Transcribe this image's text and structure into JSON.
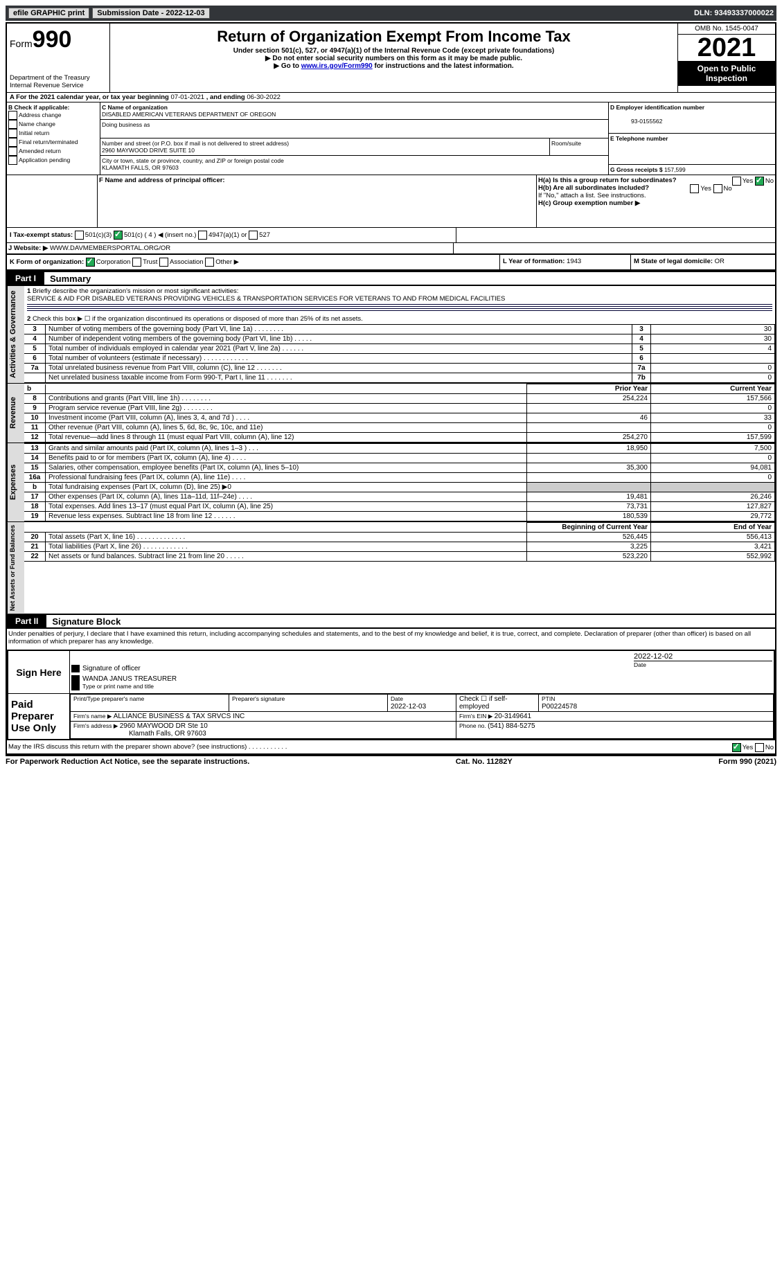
{
  "topbar": {
    "efile_btn": "efile GRAPHIC print",
    "submission_label": "Submission Date - ",
    "submission_date": "2022-12-03",
    "dln_label": "DLN: ",
    "dln": "93493337000022"
  },
  "header": {
    "form_prefix": "Form",
    "form_number": "990",
    "dept": "Department of the Treasury\nInternal Revenue Service",
    "title": "Return of Organization Exempt From Income Tax",
    "subtitle": "Under section 501(c), 527, or 4947(a)(1) of the Internal Revenue Code (except private foundations)",
    "note1": "▶ Do not enter social security numbers on this form as it may be made public.",
    "note2_pre": "▶ Go to ",
    "note2_link": "www.irs.gov/Form990",
    "note2_post": " for instructions and the latest information.",
    "omb": "OMB No. 1545-0047",
    "year": "2021",
    "open": "Open to Public Inspection"
  },
  "periodA": {
    "label": "A For the 2021 calendar year, or tax year beginning ",
    "begin": "07-01-2021",
    "mid": " , and ending ",
    "end": "06-30-2022"
  },
  "boxB": {
    "label": "B Check if applicable:",
    "opts": [
      "Address change",
      "Name change",
      "Initial return",
      "Final return/terminated",
      "Amended return",
      "Application pending"
    ]
  },
  "boxC": {
    "name_label": "C Name of organization",
    "name": "DISABLED AMERICAN VETERANS DEPARTMENT OF OREGON",
    "dba_label": "Doing business as",
    "dba": "",
    "addr_label": "Number and street (or P.O. box if mail is not delivered to street address)",
    "room_label": "Room/suite",
    "addr": "2960 MAYWOOD DRIVE SUITE 10",
    "city_label": "City or town, state or province, country, and ZIP or foreign postal code",
    "city": "KLAMATH FALLS, OR  97603"
  },
  "boxD": {
    "label": "D Employer identification number",
    "val": "93-0155562"
  },
  "boxE": {
    "label": "E Telephone number",
    "val": ""
  },
  "boxG": {
    "label": "G Gross receipts $ ",
    "val": "157,599"
  },
  "boxF": {
    "label": "F  Name and address of principal officer:",
    "val": ""
  },
  "boxH": {
    "a_label": "H(a)  Is this a group return for subordinates?",
    "a_yes": "Yes",
    "a_no": "No",
    "b_label": "H(b)  Are all subordinates included?",
    "b_yes": "Yes",
    "b_no": "No",
    "b_note": "If \"No,\" attach a list. See instructions.",
    "c_label": "H(c)  Group exemption number ▶"
  },
  "boxI": {
    "label": "I  Tax-exempt status:",
    "o1": "501(c)(3)",
    "o2": "501(c) ( 4 ) ◀ (insert no.)",
    "o3": "4947(a)(1) or",
    "o4": "527"
  },
  "boxJ": {
    "label": "J  Website: ▶ ",
    "val": "WWW.DAVMEMBERSPORTAL.ORG/OR"
  },
  "boxK": {
    "label": "K Form of organization:",
    "o1": "Corporation",
    "o2": "Trust",
    "o3": "Association",
    "o4": "Other ▶"
  },
  "boxL": {
    "label": "L Year of formation: ",
    "val": "1943"
  },
  "boxM": {
    "label": "M State of legal domicile: ",
    "val": "OR"
  },
  "part1": {
    "label": "Part I",
    "title": "Summary",
    "q1": "Briefly describe the organization's mission or most significant activities:",
    "q1_val": "SERVICE & AID FOR DISABLED VETERANS PROVIDING VEHICLES & TRANSPORTATION SERVICES FOR VETERANS TO AND FROM MEDICAL FACILITIES",
    "q2": "Check this box ▶ ☐ if the organization discontinued its operations or disposed of more than 25% of its net assets.",
    "rows_ag": [
      {
        "n": "3",
        "t": "Number of voting members of the governing body (Part VI, line 1a)  .   .   .   .   .   .   .   .",
        "lab": "3",
        "v": "30"
      },
      {
        "n": "4",
        "t": "Number of independent voting members of the governing body (Part VI, line 1b)  .   .   .   .   .",
        "lab": "4",
        "v": "30"
      },
      {
        "n": "5",
        "t": "Total number of individuals employed in calendar year 2021 (Part V, line 2a)  .   .   .   .   .   .",
        "lab": "5",
        "v": "4"
      },
      {
        "n": "6",
        "t": "Total number of volunteers (estimate if necessary)   .   .   .   .   .   .   .   .   .   .   .   .",
        "lab": "6",
        "v": ""
      },
      {
        "n": "7a",
        "t": "Total unrelated business revenue from Part VIII, column (C), line 12  .   .   .   .   .   .   .",
        "lab": "7a",
        "v": "0"
      },
      {
        "n": "",
        "t": "Net unrelated business taxable income from Form 990-T, Part I, line 11  .   .   .   .   .   .   .",
        "lab": "7b",
        "v": "0"
      }
    ],
    "col_prior": "Prior Year",
    "col_current": "Current Year",
    "rows_rev": [
      {
        "n": "8",
        "t": "Contributions and grants (Part VIII, line 1h)  .   .   .   .   .   .   .   .",
        "p": "254,224",
        "c": "157,566"
      },
      {
        "n": "9",
        "t": "Program service revenue (Part VIII, line 2g)   .   .   .   .   .   .   .   .",
        "p": "",
        "c": "0"
      },
      {
        "n": "10",
        "t": "Investment income (Part VIII, column (A), lines 3, 4, and 7d )  .   .   .   .",
        "p": "46",
        "c": "33"
      },
      {
        "n": "11",
        "t": "Other revenue (Part VIII, column (A), lines 5, 6d, 8c, 9c, 10c, and 11e)",
        "p": "",
        "c": "0"
      },
      {
        "n": "12",
        "t": "Total revenue—add lines 8 through 11 (must equal Part VIII, column (A), line 12)",
        "p": "254,270",
        "c": "157,599"
      }
    ],
    "rows_exp": [
      {
        "n": "13",
        "t": "Grants and similar amounts paid (Part IX, column (A), lines 1–3 )  .   .   .",
        "p": "18,950",
        "c": "7,500"
      },
      {
        "n": "14",
        "t": "Benefits paid to or for members (Part IX, column (A), line 4)  .   .   .   .",
        "p": "",
        "c": "0"
      },
      {
        "n": "15",
        "t": "Salaries, other compensation, employee benefits (Part IX, column (A), lines 5–10)",
        "p": "35,300",
        "c": "94,081"
      },
      {
        "n": "16a",
        "t": "Professional fundraising fees (Part IX, column (A), line 11e)  .   .   .   .",
        "p": "",
        "c": "0"
      },
      {
        "n": "b",
        "t": "Total fundraising expenses (Part IX, column (D), line 25) ▶0",
        "p": "SHADE",
        "c": "SHADE"
      },
      {
        "n": "17",
        "t": "Other expenses (Part IX, column (A), lines 11a–11d, 11f–24e)  .   .   .   .",
        "p": "19,481",
        "c": "26,246"
      },
      {
        "n": "18",
        "t": "Total expenses. Add lines 13–17 (must equal Part IX, column (A), line 25)",
        "p": "73,731",
        "c": "127,827"
      },
      {
        "n": "19",
        "t": "Revenue less expenses. Subtract line 18 from line 12  .   .   .   .   .   .",
        "p": "180,539",
        "c": "29,772"
      }
    ],
    "col_begin": "Beginning of Current Year",
    "col_end": "End of Year",
    "rows_net": [
      {
        "n": "20",
        "t": "Total assets (Part X, line 16)  .   .   .   .   .   .   .   .   .   .   .   .   .",
        "p": "526,445",
        "c": "556,413"
      },
      {
        "n": "21",
        "t": "Total liabilities (Part X, line 26)  .   .   .   .   .   .   .   .   .   .   .   .",
        "p": "3,225",
        "c": "3,421"
      },
      {
        "n": "22",
        "t": "Net assets or fund balances. Subtract line 21 from line 20  .   .   .   .   .",
        "p": "523,220",
        "c": "552,992"
      }
    ],
    "vtab_ag": "Activities & Governance",
    "vtab_rev": "Revenue",
    "vtab_exp": "Expenses",
    "vtab_net": "Net Assets or Fund Balances"
  },
  "part2": {
    "label": "Part II",
    "title": "Signature Block",
    "perjury": "Under penalties of perjury, I declare that I have examined this return, including accompanying schedules and statements, and to the best of my knowledge and belief, it is true, correct, and complete. Declaration of preparer (other than officer) is based on all information of which preparer has any knowledge.",
    "sign_here": "Sign Here",
    "sig_officer": "Signature of officer",
    "sig_date_label": "Date",
    "sig_date": "2022-12-02",
    "name_title_label": "Type or print name and title",
    "name_title": "WANDA JANUS  TREASURER",
    "paid_only": "Paid Preparer Use Only",
    "prep_name_label": "Print/Type preparer's name",
    "prep_sig_label": "Preparer's signature",
    "date_label": "Date",
    "date_val": "2022-12-03",
    "check_se": "Check ☐ if self-employed",
    "ptin_label": "PTIN",
    "ptin": "P00224578",
    "firm_name_label": "Firm's name   ▶ ",
    "firm_name": "ALLIANCE BUSINESS & TAX SRVCS INC",
    "firm_ein_label": "Firm's EIN ▶ ",
    "firm_ein": "20-3149641",
    "firm_addr_label": "Firm's address ▶ ",
    "firm_addr1": "2960 MAYWOOD DR Ste 10",
    "firm_addr2": "Klamath Falls, OR  97603",
    "phone_label": "Phone no. ",
    "phone": "(541) 884-5275",
    "discuss": "May the IRS discuss this return with the preparer shown above? (see instructions)  .   .   .   .   .   .   .   .   .   .   .",
    "discuss_yes": "Yes",
    "discuss_no": "No"
  },
  "footer": {
    "pra": "For Paperwork Reduction Act Notice, see the separate instructions.",
    "cat": "Cat. No. 11282Y",
    "form": "Form 990 (2021)"
  }
}
